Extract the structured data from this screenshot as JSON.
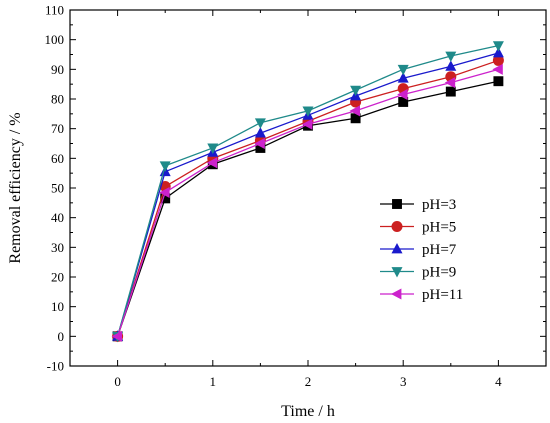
{
  "chart_data": {
    "type": "line",
    "title": "",
    "xlabel": "Time / h",
    "ylabel": "Removal efficiency / %",
    "xlim": [
      -0.5,
      4.5
    ],
    "ylim": [
      -10,
      110
    ],
    "xticks": [
      0,
      1,
      2,
      3,
      4
    ],
    "yticks": [
      -10,
      0,
      10,
      20,
      30,
      40,
      50,
      60,
      70,
      80,
      90,
      100,
      110
    ],
    "grid": false,
    "legend_position": "right",
    "x": [
      0,
      0.5,
      1,
      1.5,
      2,
      2.5,
      3,
      3.5,
      4
    ],
    "series": [
      {
        "name": "pH=3",
        "color": "#000000",
        "marker": "square",
        "values": [
          0,
          46.5,
          58,
          63.5,
          71,
          73.5,
          79,
          82.5,
          86
        ]
      },
      {
        "name": "pH=5",
        "color": "#cc2020",
        "marker": "circle",
        "values": [
          0,
          50.5,
          60,
          66,
          72.5,
          79,
          83.5,
          87.5,
          93
        ]
      },
      {
        "name": "pH=7",
        "color": "#1a1acc",
        "marker": "triangle-up",
        "values": [
          0,
          55.5,
          62,
          68.5,
          74.5,
          81,
          87,
          91,
          95.5
        ]
      },
      {
        "name": "pH=9",
        "color": "#1f8a8a",
        "marker": "triangle-down",
        "values": [
          0,
          57.5,
          63.5,
          72,
          76,
          83,
          90,
          94.5,
          98
        ]
      },
      {
        "name": "pH=11",
        "color": "#cc22cc",
        "marker": "triangle-left",
        "values": [
          0,
          48.5,
          58.5,
          65,
          71.5,
          76,
          81.5,
          85.5,
          90
        ]
      }
    ]
  }
}
